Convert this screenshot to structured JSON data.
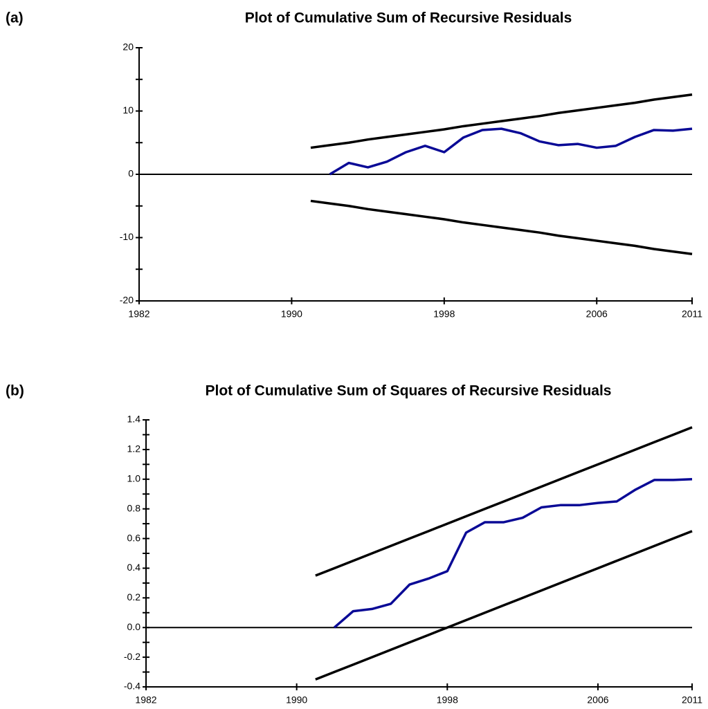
{
  "chart_data": [
    {
      "type": "line",
      "panel_label": "(a)",
      "title": "Plot of Cumulative Sum of Recursive Residuals",
      "x": [
        1991,
        1992,
        1993,
        1994,
        1995,
        1996,
        1997,
        1998,
        1999,
        2000,
        2001,
        2002,
        2003,
        2004,
        2005,
        2006,
        2007,
        2008,
        2009,
        2010,
        2011
      ],
      "series": [
        {
          "color": "#000000",
          "values": [
            4.2,
            4.6,
            5.0,
            5.5,
            5.9,
            6.3,
            6.7,
            7.1,
            7.6,
            8.0,
            8.4,
            8.8,
            9.2,
            9.7,
            10.1,
            10.5,
            10.9,
            11.3,
            11.8,
            12.2,
            12.6
          ]
        },
        {
          "color": "#000000",
          "values": [
            -4.2,
            -4.6,
            -5.0,
            -5.5,
            -5.9,
            -6.3,
            -6.7,
            -7.1,
            -7.6,
            -8.0,
            -8.4,
            -8.8,
            -9.2,
            -9.7,
            -10.1,
            -10.5,
            -10.9,
            -11.3,
            -11.8,
            -12.2,
            -12.6
          ]
        },
        {
          "color": "#0a0a96",
          "values": [
            null,
            0,
            1.8,
            1.1,
            2.0,
            3.5,
            4.5,
            3.5,
            5.8,
            7.0,
            7.2,
            6.5,
            5.2,
            4.6,
            4.8,
            4.2,
            4.5,
            5.9,
            7.0,
            6.9,
            7.2
          ]
        }
      ],
      "reference_line": 0,
      "xlim": [
        1982,
        2011
      ],
      "xticks": [
        1982,
        1990,
        1998,
        2006,
        2011
      ],
      "ylim": [
        -20,
        20
      ],
      "yticks": [
        -20,
        -10,
        0,
        10,
        20
      ],
      "yticks_minor": [
        -15,
        -5,
        5,
        15
      ]
    },
    {
      "type": "line",
      "panel_label": "(b)",
      "title": "Plot of Cumulative Sum of Squares of Recursive Residuals",
      "x": [
        1991,
        1992,
        1993,
        1994,
        1995,
        1996,
        1997,
        1998,
        1999,
        2000,
        2001,
        2002,
        2003,
        2004,
        2005,
        2006,
        2007,
        2008,
        2009,
        2010,
        2011
      ],
      "series": [
        {
          "color": "#000000",
          "values": [
            0.35,
            0.4,
            0.45,
            0.5,
            0.55,
            0.6,
            0.65,
            0.7,
            0.75,
            0.8,
            0.85,
            0.9,
            0.95,
            1.0,
            1.05,
            1.1,
            1.15,
            1.2,
            1.25,
            1.3,
            1.35
          ]
        },
        {
          "color": "#000000",
          "values": [
            -0.35,
            -0.3,
            -0.25,
            -0.2,
            -0.15,
            -0.1,
            -0.05,
            0.0,
            0.05,
            0.1,
            0.15,
            0.2,
            0.25,
            0.3,
            0.35,
            0.4,
            0.45,
            0.5,
            0.55,
            0.6,
            0.65
          ]
        },
        {
          "color": "#0a0a96",
          "values": [
            null,
            0,
            0.11,
            0.125,
            0.16,
            0.29,
            0.33,
            0.38,
            0.64,
            0.71,
            0.71,
            0.74,
            0.81,
            0.825,
            0.825,
            0.84,
            0.85,
            0.93,
            0.995,
            0.995,
            1.0
          ]
        }
      ],
      "reference_line": 0,
      "xlim": [
        1982,
        2011
      ],
      "xticks": [
        1982,
        1990,
        1998,
        2006,
        2011
      ],
      "ylim": [
        -0.4,
        1.4
      ],
      "yticks": [
        -0.4,
        -0.2,
        {
          "value": 0,
          "label": "0.0"
        },
        0.2,
        0.4,
        0.6,
        0.8,
        {
          "value": 1,
          "label": "1.0"
        },
        1.2,
        1.4
      ],
      "yticks_minor": [
        -0.3,
        -0.1,
        0.1,
        0.3,
        0.5,
        0.7,
        0.9,
        1.1,
        1.3
      ]
    }
  ]
}
